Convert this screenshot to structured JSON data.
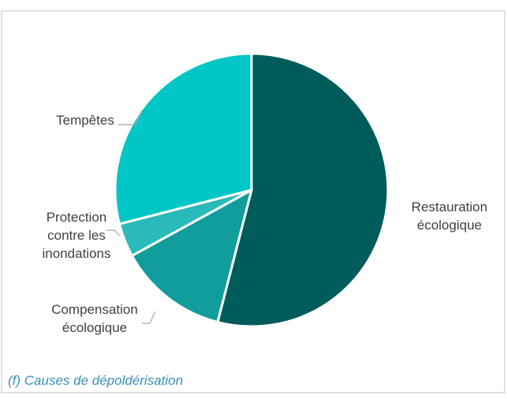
{
  "chart_data": {
    "type": "pie",
    "categories": [
      "Restauration écologique",
      "Compensation écologique",
      "Protection contre les inondations",
      "Tempêtes"
    ],
    "values": [
      54,
      13,
      4,
      29
    ],
    "colors": [
      "#005b5b",
      "#129d9d",
      "#2bbaba",
      "#00c6c6"
    ],
    "caption": "(f) Causes de dépoldérisation"
  }
}
